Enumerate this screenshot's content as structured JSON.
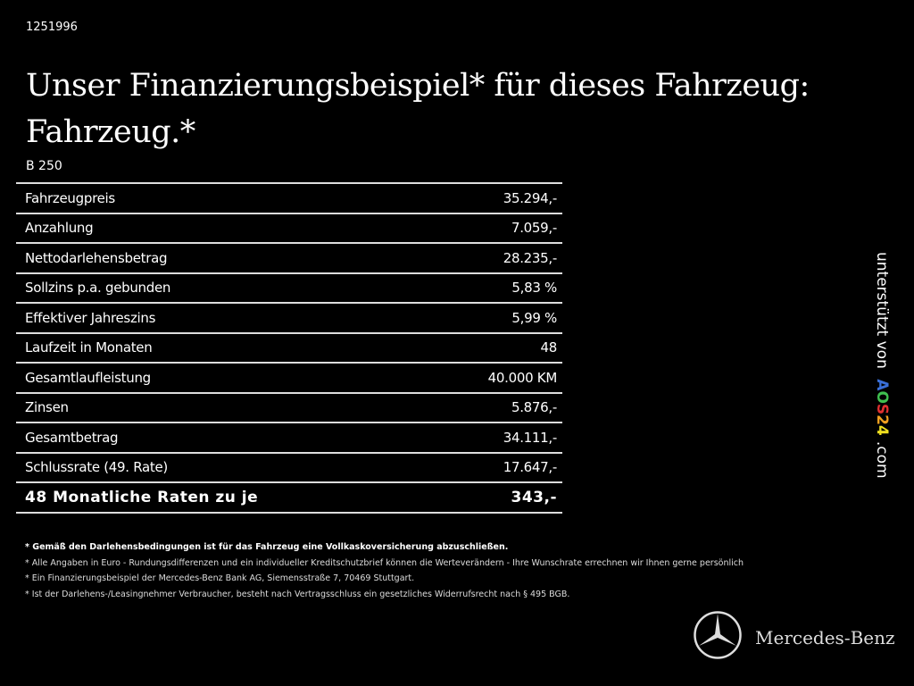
{
  "id": "1251996",
  "title": {
    "line1": "Unser Finanzierungsbeispiel* für dieses Fahrzeug:",
    "line2": "Fahrzeug.*"
  },
  "model": "B 250",
  "rows": [
    {
      "label": "Fahrzeugpreis",
      "value": "35.294,-"
    },
    {
      "label": "Anzahlung",
      "value": "7.059,-"
    },
    {
      "label": "Nettodarlehensbetrag",
      "value": "28.235,-"
    },
    {
      "label": "Sollzins p.a. gebunden",
      "value": "5,83 %"
    },
    {
      "label": "Effektiver Jahreszins",
      "value": "5,99 %"
    },
    {
      "label": "Laufzeit in Monaten",
      "value": "48"
    },
    {
      "label": "Gesamtlaufleistung",
      "value": "40.000 KM"
    },
    {
      "label": "Zinsen",
      "value": "5.876,-"
    },
    {
      "label": "Gesamtbetrag",
      "value": "34.111,-"
    },
    {
      "label": "Schlussrate (49. Rate)",
      "value": "17.647,-"
    }
  ],
  "total": {
    "label": "48 Monatliche Raten zu je",
    "value": "343,-"
  },
  "notes": [
    "* Gemäß den Darlehensbedingungen ist für das Fahrzeug eine Vollkaskoversicherung abzuschließen.",
    "* Alle Angaben in Euro - Rundungsdifferenzen und ein individueller Kreditschutzbrief können die Werteverändern - Ihre Wunschrate errechnen wir Ihnen gerne persönlich",
    "* Ein Finanzierungsbeispiel der Mercedes-Benz Bank AG, Siemensstraße 7, 70469 Stuttgart.",
    "* Ist der Darlehens-/Leasingnehmer Verbraucher, besteht nach Vertragsschluss ein gesetzliches Widerrufsrecht nach § 495 BGB."
  ],
  "side": {
    "prefix": "unterstützt von",
    "logo": [
      "A",
      "O",
      "S",
      "2",
      "4"
    ],
    "suffix": ".com",
    "logo_colors": [
      "#3a6fd8",
      "#3fbf4f",
      "#e03030",
      "#f0a020",
      "#f0e020"
    ]
  },
  "brand": "Mercedes-Benz"
}
